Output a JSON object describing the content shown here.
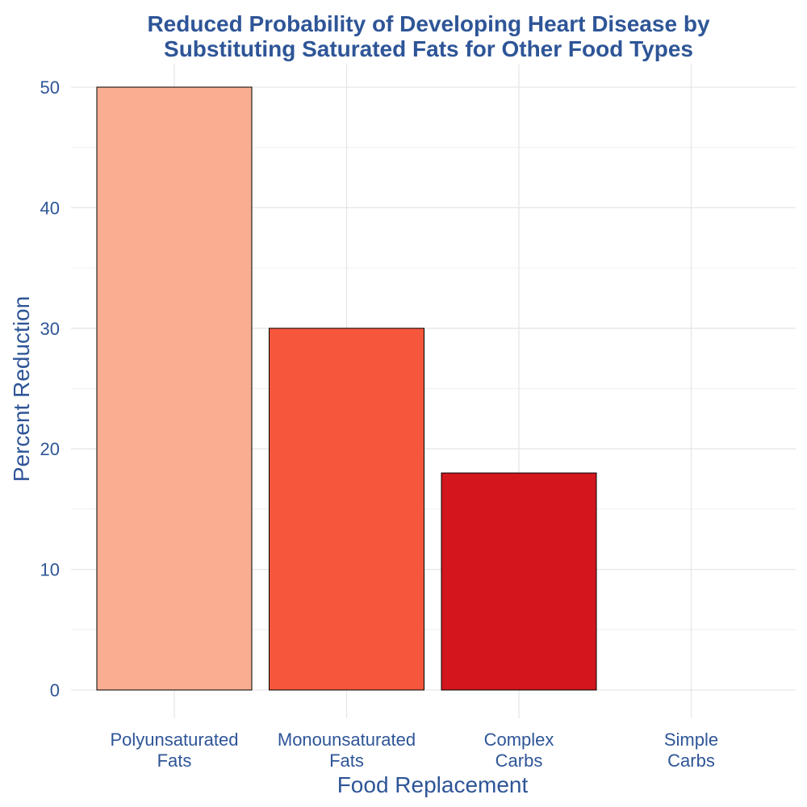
{
  "chart_data": {
    "type": "bar",
    "title_lines": [
      "Reduced Probability of Developing Heart Disease by",
      "Substituting Saturated Fats for Other Food Types"
    ],
    "xlabel": "Food Replacement",
    "ylabel": "Percent Reduction",
    "categories": [
      [
        "Polyunsaturated",
        "Fats"
      ],
      [
        "Monounsaturated",
        "Fats"
      ],
      [
        "Complex",
        "Carbs"
      ],
      [
        "Simple",
        "Carbs"
      ]
    ],
    "values": [
      50,
      30,
      18,
      0
    ],
    "colors": [
      "#f9ae91",
      "#f6573c",
      "#d3161d",
      "#a50f15"
    ],
    "ylim": [
      0,
      50
    ],
    "yticks": [
      0,
      10,
      20,
      30,
      40,
      50
    ],
    "grid": true,
    "legend": "none"
  }
}
